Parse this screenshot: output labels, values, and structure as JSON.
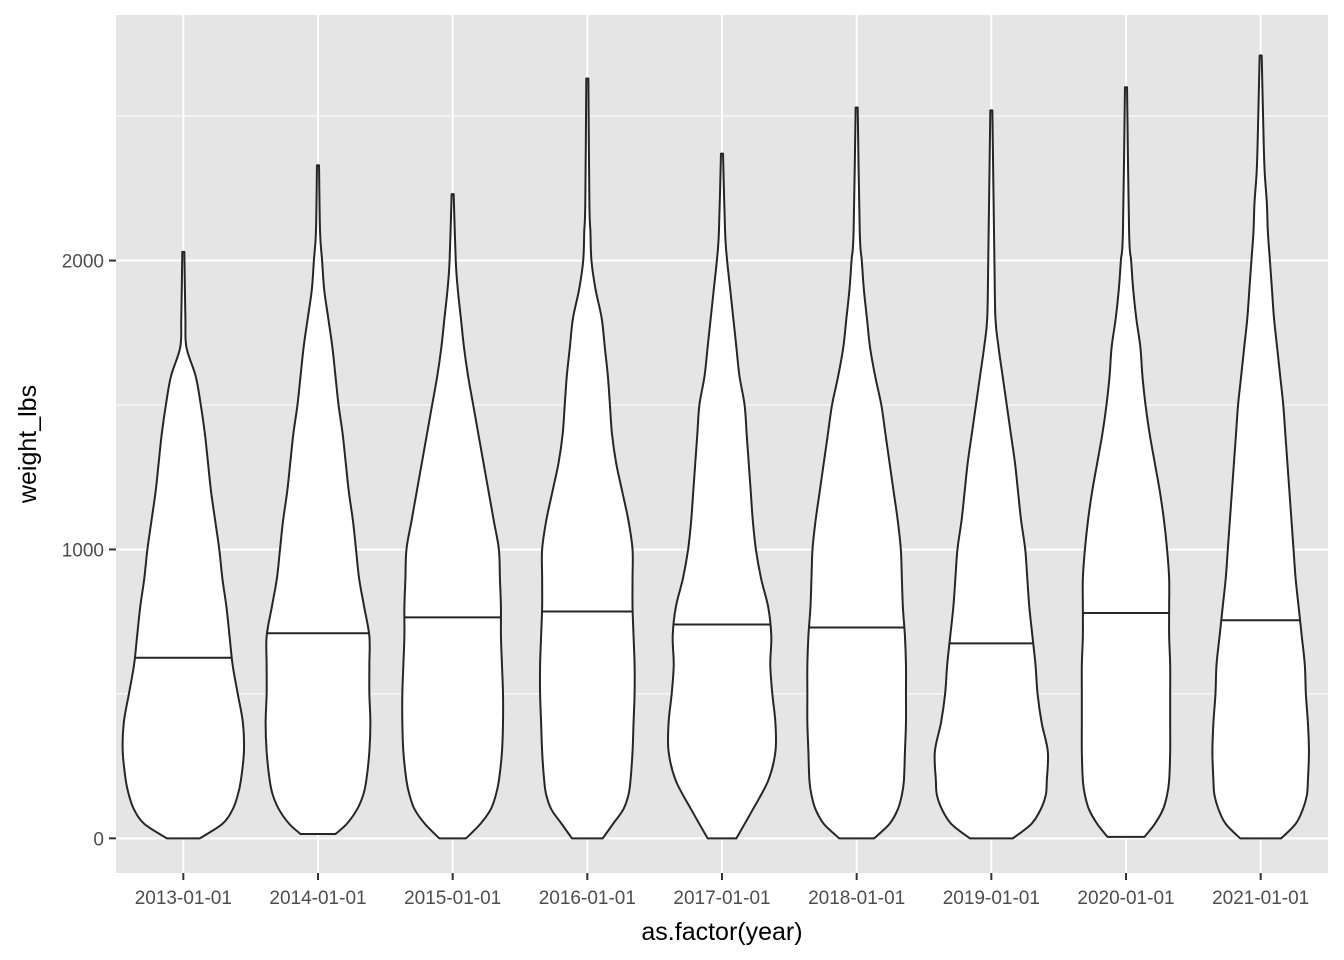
{
  "chart_data": {
    "type": "violin",
    "title": "",
    "xlabel": "as.factor(year)",
    "ylabel": "weight_lbs",
    "ylim": [
      -120,
      2850
    ],
    "y_ticks": [
      0,
      1000,
      2000
    ],
    "y_tick_labels": [
      "0",
      "1000",
      "2000"
    ],
    "y_minor_ticks": [
      500,
      1500,
      2500
    ],
    "grid": true,
    "legend": "none",
    "colors": {
      "panel": "#e5e5e5",
      "grid": "#ffffff",
      "violin_fill": "#ffffff",
      "violin_stroke": "#262626",
      "tick_text": "#4d4d4d"
    },
    "categories": [
      "2013-01-01",
      "2014-01-01",
      "2015-01-01",
      "2016-01-01",
      "2017-01-01",
      "2018-01-01",
      "2019-01-01",
      "2020-01-01",
      "2021-01-01"
    ],
    "violins": [
      {
        "category": "2013-01-01",
        "min": 0,
        "max": 2030,
        "median": 625,
        "profile": [
          [
            0,
            16
          ],
          [
            50,
            38
          ],
          [
            100,
            48
          ],
          [
            150,
            53
          ],
          [
            200,
            56
          ],
          [
            300,
            59
          ],
          [
            400,
            58
          ],
          [
            500,
            53
          ],
          [
            600,
            48
          ],
          [
            700,
            45
          ],
          [
            800,
            42
          ],
          [
            900,
            38
          ],
          [
            1000,
            35
          ],
          [
            1100,
            31
          ],
          [
            1200,
            27
          ],
          [
            1300,
            24
          ],
          [
            1400,
            21
          ],
          [
            1500,
            17
          ],
          [
            1600,
            12
          ],
          [
            1700,
            3
          ],
          [
            1800,
            2
          ],
          [
            2030,
            1
          ]
        ]
      },
      {
        "category": "2014-01-01",
        "min": 15,
        "max": 2330,
        "median": 710,
        "profile": [
          [
            15,
            17
          ],
          [
            50,
            28
          ],
          [
            100,
            38
          ],
          [
            150,
            44
          ],
          [
            200,
            47
          ],
          [
            300,
            50
          ],
          [
            400,
            51
          ],
          [
            500,
            50
          ],
          [
            600,
            50
          ],
          [
            700,
            50
          ],
          [
            800,
            45
          ],
          [
            900,
            40
          ],
          [
            1000,
            37
          ],
          [
            1100,
            34
          ],
          [
            1200,
            30
          ],
          [
            1300,
            27
          ],
          [
            1400,
            24
          ],
          [
            1500,
            20
          ],
          [
            1600,
            17
          ],
          [
            1700,
            14
          ],
          [
            1800,
            10
          ],
          [
            1900,
            6
          ],
          [
            2000,
            4
          ],
          [
            2100,
            2
          ],
          [
            2330,
            1
          ]
        ]
      },
      {
        "category": "2015-01-01",
        "min": 0,
        "max": 2230,
        "median": 765,
        "profile": [
          [
            0,
            13
          ],
          [
            50,
            27
          ],
          [
            100,
            37
          ],
          [
            150,
            42
          ],
          [
            200,
            45
          ],
          [
            300,
            48
          ],
          [
            400,
            49
          ],
          [
            500,
            49
          ],
          [
            600,
            48
          ],
          [
            700,
            47
          ],
          [
            800,
            47
          ],
          [
            900,
            46
          ],
          [
            1000,
            45
          ],
          [
            1100,
            40
          ],
          [
            1200,
            35
          ],
          [
            1300,
            30
          ],
          [
            1400,
            25
          ],
          [
            1500,
            20
          ],
          [
            1600,
            15
          ],
          [
            1700,
            11
          ],
          [
            1800,
            8
          ],
          [
            1900,
            5
          ],
          [
            2000,
            3
          ],
          [
            2230,
            1
          ]
        ]
      },
      {
        "category": "2016-01-01",
        "min": 0,
        "max": 2630,
        "median": 785,
        "profile": [
          [
            0,
            15
          ],
          [
            50,
            25
          ],
          [
            100,
            35
          ],
          [
            150,
            40
          ],
          [
            200,
            42
          ],
          [
            300,
            44
          ],
          [
            400,
            45
          ],
          [
            500,
            46
          ],
          [
            600,
            46
          ],
          [
            700,
            45
          ],
          [
            800,
            44
          ],
          [
            900,
            44
          ],
          [
            1000,
            44
          ],
          [
            1100,
            40
          ],
          [
            1200,
            34
          ],
          [
            1300,
            28
          ],
          [
            1400,
            24
          ],
          [
            1500,
            22
          ],
          [
            1600,
            20
          ],
          [
            1700,
            17
          ],
          [
            1800,
            14
          ],
          [
            1900,
            8
          ],
          [
            2000,
            4
          ],
          [
            2100,
            3
          ],
          [
            2200,
            2
          ],
          [
            2630,
            1
          ]
        ]
      },
      {
        "category": "2017-01-01",
        "min": 0,
        "max": 2370,
        "median": 740,
        "profile": [
          [
            0,
            14
          ],
          [
            100,
            30
          ],
          [
            200,
            45
          ],
          [
            300,
            52
          ],
          [
            400,
            52
          ],
          [
            500,
            49
          ],
          [
            600,
            47
          ],
          [
            700,
            48
          ],
          [
            800,
            45
          ],
          [
            900,
            38
          ],
          [
            1000,
            33
          ],
          [
            1100,
            30
          ],
          [
            1200,
            28
          ],
          [
            1300,
            26
          ],
          [
            1400,
            24
          ],
          [
            1500,
            22
          ],
          [
            1600,
            17
          ],
          [
            1700,
            14
          ],
          [
            1800,
            11
          ],
          [
            1900,
            8
          ],
          [
            2000,
            5
          ],
          [
            2100,
            3
          ],
          [
            2370,
            1
          ]
        ]
      },
      {
        "category": "2018-01-01",
        "min": 0,
        "max": 2530,
        "median": 730,
        "profile": [
          [
            0,
            17
          ],
          [
            50,
            32
          ],
          [
            100,
            40
          ],
          [
            150,
            44
          ],
          [
            200,
            46
          ],
          [
            300,
            47
          ],
          [
            400,
            48
          ],
          [
            500,
            48
          ],
          [
            600,
            48
          ],
          [
            700,
            47
          ],
          [
            800,
            45
          ],
          [
            900,
            44
          ],
          [
            1000,
            43
          ],
          [
            1100,
            40
          ],
          [
            1200,
            36
          ],
          [
            1300,
            32
          ],
          [
            1400,
            28
          ],
          [
            1500,
            24
          ],
          [
            1600,
            18
          ],
          [
            1700,
            13
          ],
          [
            1800,
            10
          ],
          [
            1900,
            7
          ],
          [
            2000,
            5
          ],
          [
            2100,
            3
          ],
          [
            2530,
            1
          ]
        ]
      },
      {
        "category": "2019-01-01",
        "min": 0,
        "max": 2520,
        "median": 675,
        "profile": [
          [
            0,
            21
          ],
          [
            50,
            39
          ],
          [
            100,
            48
          ],
          [
            150,
            53
          ],
          [
            200,
            54
          ],
          [
            300,
            55
          ],
          [
            400,
            49
          ],
          [
            500,
            45
          ],
          [
            600,
            43
          ],
          [
            700,
            40
          ],
          [
            800,
            37
          ],
          [
            900,
            35
          ],
          [
            1000,
            33
          ],
          [
            1100,
            29
          ],
          [
            1200,
            26
          ],
          [
            1300,
            23
          ],
          [
            1400,
            19
          ],
          [
            1500,
            15
          ],
          [
            1600,
            11
          ],
          [
            1700,
            7
          ],
          [
            1800,
            4
          ],
          [
            2000,
            3
          ],
          [
            2520,
            1
          ]
        ]
      },
      {
        "category": "2020-01-01",
        "min": 5,
        "max": 2600,
        "median": 780,
        "profile": [
          [
            5,
            18
          ],
          [
            50,
            28
          ],
          [
            100,
            36
          ],
          [
            150,
            40
          ],
          [
            200,
            42
          ],
          [
            300,
            43
          ],
          [
            400,
            43
          ],
          [
            500,
            43
          ],
          [
            600,
            43
          ],
          [
            700,
            42
          ],
          [
            800,
            42
          ],
          [
            900,
            42
          ],
          [
            1000,
            40
          ],
          [
            1100,
            37
          ],
          [
            1200,
            33
          ],
          [
            1300,
            28
          ],
          [
            1400,
            23
          ],
          [
            1500,
            19
          ],
          [
            1600,
            16
          ],
          [
            1700,
            14
          ],
          [
            1800,
            10
          ],
          [
            1900,
            7
          ],
          [
            2000,
            5
          ],
          [
            2100,
            3
          ],
          [
            2600,
            1
          ]
        ]
      },
      {
        "category": "2021-01-01",
        "min": 0,
        "max": 2710,
        "median": 755,
        "profile": [
          [
            0,
            20
          ],
          [
            50,
            34
          ],
          [
            100,
            41
          ],
          [
            150,
            45
          ],
          [
            200,
            46
          ],
          [
            300,
            47
          ],
          [
            400,
            46
          ],
          [
            500,
            44
          ],
          [
            600,
            43
          ],
          [
            700,
            40
          ],
          [
            800,
            37
          ],
          [
            900,
            34
          ],
          [
            1000,
            32
          ],
          [
            1100,
            30
          ],
          [
            1200,
            28
          ],
          [
            1300,
            26
          ],
          [
            1400,
            24
          ],
          [
            1500,
            22
          ],
          [
            1600,
            19
          ],
          [
            1700,
            16
          ],
          [
            1800,
            13
          ],
          [
            1900,
            11
          ],
          [
            2000,
            9
          ],
          [
            2100,
            7
          ],
          [
            2200,
            6
          ],
          [
            2300,
            4
          ],
          [
            2400,
            3
          ],
          [
            2710,
            1
          ]
        ]
      }
    ]
  }
}
